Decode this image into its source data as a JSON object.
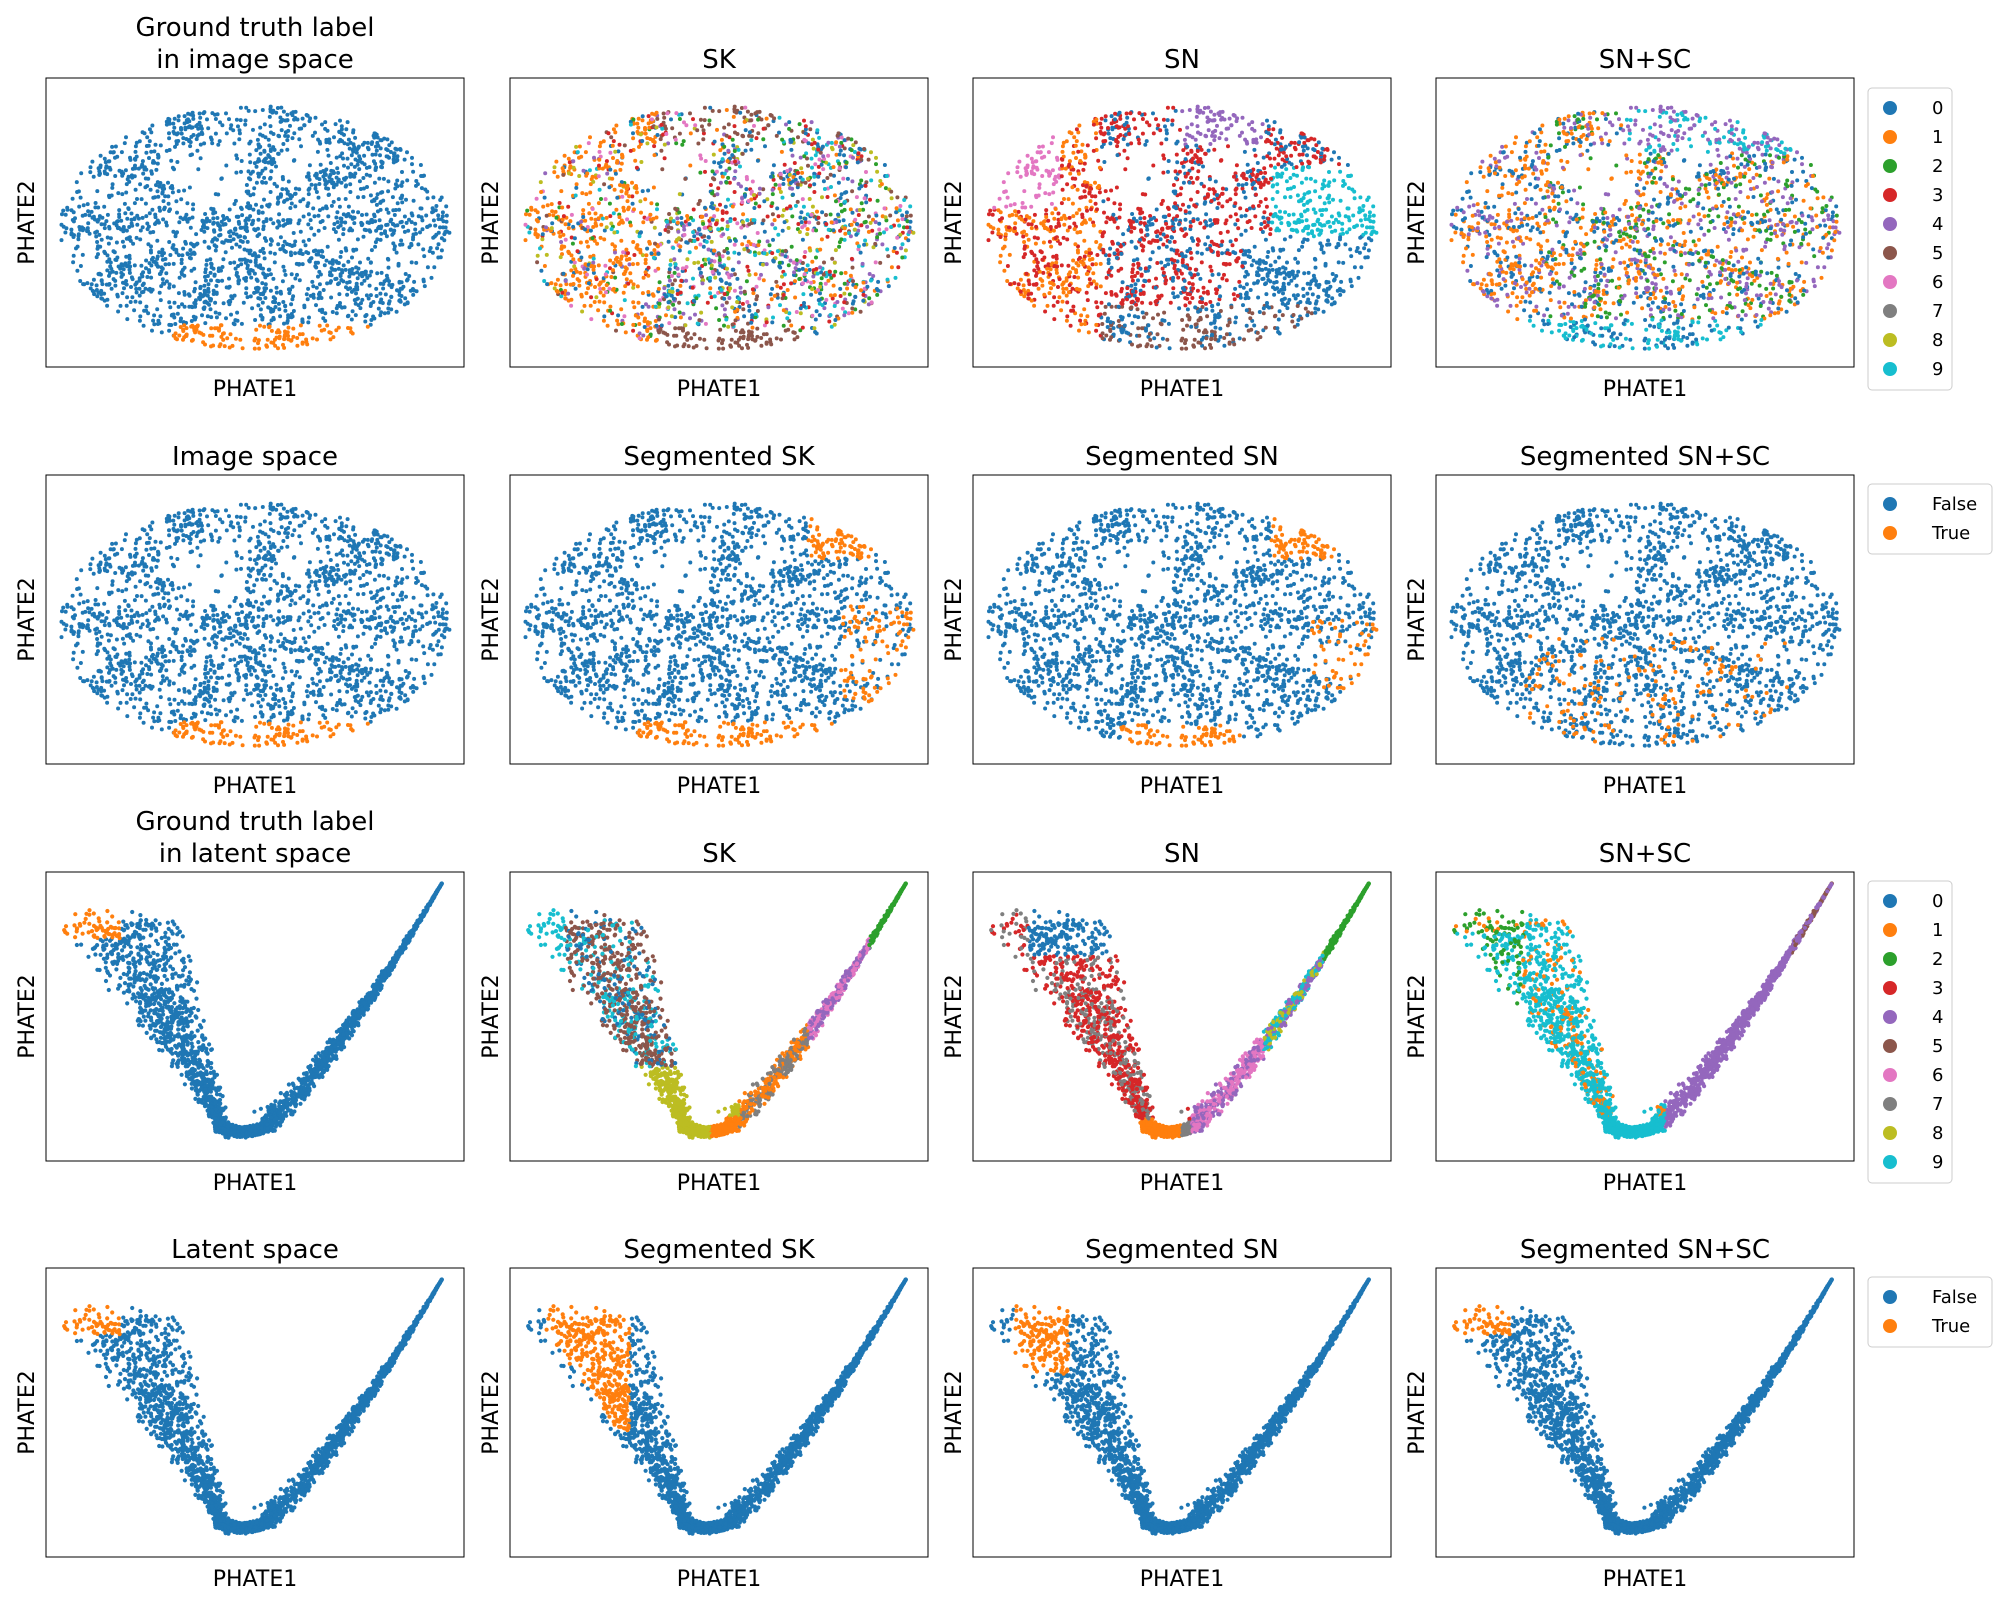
{
  "figure": {
    "palette": {
      "0": "#1f77b4",
      "1": "#ff7f0e",
      "2": "#2ca02c",
      "3": "#d62728",
      "4": "#9467bd",
      "5": "#8c564b",
      "6": "#e377c2",
      "7": "#7f7f7f",
      "8": "#bcbd22",
      "9": "#17becf",
      "False": "#1f77b4",
      "True": "#ff7f0e"
    },
    "legends": [
      {
        "entries": [
          "0",
          "1",
          "2",
          "3",
          "4",
          "5",
          "6",
          "7",
          "8",
          "9"
        ]
      },
      {
        "entries": [
          "False",
          "True"
        ]
      },
      {
        "entries": [
          "0",
          "1",
          "2",
          "3",
          "4",
          "5",
          "6",
          "7",
          "8",
          "9"
        ]
      },
      {
        "entries": [
          "False",
          "True"
        ]
      }
    ]
  },
  "chart_data": [
    {
      "type": "scatter",
      "title": "Ground truth label\nin image space",
      "xlabel": "PHATE1",
      "ylabel": "PHATE2",
      "grid": false,
      "embedding": "image",
      "coloring": "bool",
      "highlight": "bottom"
    },
    {
      "type": "scatter",
      "title": "SK",
      "xlabel": "PHATE1",
      "ylabel": "PHATE2",
      "grid": false,
      "embedding": "image",
      "coloring": "cluster",
      "scheme": "mixed"
    },
    {
      "type": "scatter",
      "title": "SN",
      "xlabel": "PHATE1",
      "ylabel": "PHATE2",
      "grid": false,
      "embedding": "image",
      "coloring": "cluster",
      "scheme": "sn_image"
    },
    {
      "type": "scatter",
      "title": "SN+SC",
      "xlabel": "PHATE1",
      "ylabel": "PHATE2",
      "grid": false,
      "embedding": "image",
      "coloring": "cluster",
      "scheme": "snsc_image"
    },
    {
      "type": "scatter",
      "title": "Image space",
      "xlabel": "PHATE1",
      "ylabel": "PHATE2",
      "grid": false,
      "embedding": "image",
      "coloring": "bool",
      "highlight": "bottom"
    },
    {
      "type": "scatter",
      "title": "Segmented SK",
      "xlabel": "PHATE1",
      "ylabel": "PHATE2",
      "grid": false,
      "embedding": "image",
      "coloring": "bool",
      "highlight": "seg_sk"
    },
    {
      "type": "scatter",
      "title": "Segmented SN",
      "xlabel": "PHATE1",
      "ylabel": "PHATE2",
      "grid": false,
      "embedding": "image",
      "coloring": "bool",
      "highlight": "seg_sn"
    },
    {
      "type": "scatter",
      "title": "Segmented SN+SC",
      "xlabel": "PHATE1",
      "ylabel": "PHATE2",
      "grid": false,
      "embedding": "image",
      "coloring": "bool",
      "highlight": "scattered"
    },
    {
      "type": "scatter",
      "title": "Ground truth label\nin latent space",
      "xlabel": "PHATE1",
      "ylabel": "PHATE2",
      "grid": false,
      "embedding": "latent",
      "coloring": "bool",
      "highlight": "tip_small"
    },
    {
      "type": "scatter",
      "title": "SK",
      "xlabel": "PHATE1",
      "ylabel": "PHATE2",
      "grid": false,
      "embedding": "latent",
      "coloring": "cluster",
      "scheme": "sk_latent"
    },
    {
      "type": "scatter",
      "title": "SN",
      "xlabel": "PHATE1",
      "ylabel": "PHATE2",
      "grid": false,
      "embedding": "latent",
      "coloring": "cluster",
      "scheme": "sn_latent"
    },
    {
      "type": "scatter",
      "title": "SN+SC",
      "xlabel": "PHATE1",
      "ylabel": "PHATE2",
      "grid": false,
      "embedding": "latent",
      "coloring": "cluster",
      "scheme": "snsc_latent"
    },
    {
      "type": "scatter",
      "title": "Latent space",
      "xlabel": "PHATE1",
      "ylabel": "PHATE2",
      "grid": false,
      "embedding": "latent",
      "coloring": "bool",
      "highlight": "tip_small"
    },
    {
      "type": "scatter",
      "title": "Segmented SK",
      "xlabel": "PHATE1",
      "ylabel": "PHATE2",
      "grid": false,
      "embedding": "latent",
      "coloring": "bool",
      "highlight": "tip_large"
    },
    {
      "type": "scatter",
      "title": "Segmented SN",
      "xlabel": "PHATE1",
      "ylabel": "PHATE2",
      "grid": false,
      "embedding": "latent",
      "coloring": "bool",
      "highlight": "tip_medium"
    },
    {
      "type": "scatter",
      "title": "Segmented SN+SC",
      "xlabel": "PHATE1",
      "ylabel": "PHATE2",
      "grid": false,
      "embedding": "latent",
      "coloring": "bool",
      "highlight": "tip_small"
    }
  ]
}
